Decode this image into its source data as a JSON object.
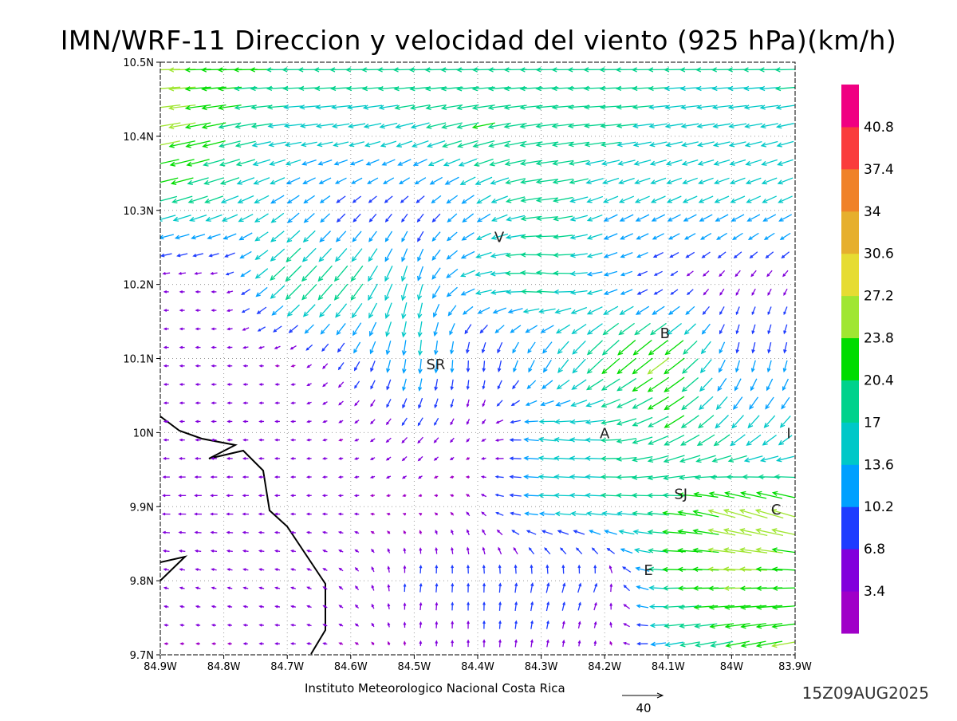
{
  "chart_data": {
    "type": "vector",
    "title": "IMN/WRF-11 Direccion y velocidad del viento (925 hPa)(km/h)",
    "xlabel": "",
    "ylabel": "",
    "xlim": [
      -84.9,
      -83.9
    ],
    "ylim": [
      9.7,
      10.5
    ],
    "grid": true,
    "x_ticks": [
      {
        "value": -84.9,
        "label": "84.9W"
      },
      {
        "value": -84.8,
        "label": "84.8W"
      },
      {
        "value": -84.7,
        "label": "84.7W"
      },
      {
        "value": -84.6,
        "label": "84.6W"
      },
      {
        "value": -84.5,
        "label": "84.5W"
      },
      {
        "value": -84.4,
        "label": "84.4W"
      },
      {
        "value": -84.3,
        "label": "84.3W"
      },
      {
        "value": -84.2,
        "label": "84.2W"
      },
      {
        "value": -84.1,
        "label": "84.1W"
      },
      {
        "value": -84.0,
        "label": "84W"
      },
      {
        "value": -83.9,
        "label": "83.9W"
      }
    ],
    "y_ticks": [
      {
        "value": 10.5,
        "label": "10.5N"
      },
      {
        "value": 10.4,
        "label": "10.4N"
      },
      {
        "value": 10.3,
        "label": "10.3N"
      },
      {
        "value": 10.2,
        "label": "10.2N"
      },
      {
        "value": 10.1,
        "label": "10.1N"
      },
      {
        "value": 10.0,
        "label": "10N"
      },
      {
        "value": 9.9,
        "label": "9.9N"
      },
      {
        "value": 9.8,
        "label": "9.8N"
      },
      {
        "value": 9.7,
        "label": "9.7N"
      }
    ],
    "wind_field": {
      "units": "km/h",
      "lons": [
        -84.9,
        -84.8,
        -84.7,
        -84.6,
        -84.5,
        -84.4,
        -84.3,
        -84.2,
        -84.1,
        -84.0,
        -83.9
      ],
      "lats": [
        10.5,
        10.4,
        10.3,
        10.2,
        10.1,
        10.0,
        9.9,
        9.8,
        9.7
      ],
      "u": [
        [
          -25,
          -22,
          -20,
          -20,
          -20,
          -20,
          -20,
          -20,
          -18,
          -18,
          -18
        ],
        [
          -26,
          -20,
          -15,
          -14,
          -15,
          -20,
          -20,
          -18,
          -15,
          -15,
          -15
        ],
        [
          -18,
          -15,
          -10,
          -6,
          -5,
          -10,
          -20,
          -12,
          -12,
          -12,
          -12
        ],
        [
          -4,
          -4,
          -15,
          -12,
          -3,
          -15,
          -20,
          -12,
          -5,
          -3,
          -3
        ],
        [
          -4,
          -4,
          -3,
          -5,
          -1,
          0,
          -5,
          -15,
          -20,
          -2,
          -2
        ],
        [
          -4,
          -4,
          -4,
          -3,
          -5,
          -2,
          -15,
          -17,
          -18,
          -12,
          -10
        ],
        [
          -7,
          -6,
          -4,
          -4,
          -2,
          -3,
          -15,
          -17,
          -20,
          -25,
          -25
        ],
        [
          -4,
          -4,
          -4,
          -3,
          1,
          0,
          2,
          3,
          -20,
          -25,
          -22
        ],
        [
          -3,
          -3,
          -4,
          -3,
          0,
          0,
          1,
          0,
          -15,
          -20,
          -25
        ]
      ],
      "v": [
        [
          0,
          0,
          0,
          0,
          0,
          0,
          0,
          0,
          0,
          0,
          0
        ],
        [
          -5,
          -5,
          -2,
          -3,
          -5,
          -5,
          -3,
          -2,
          -3,
          -3,
          -4
        ],
        [
          -5,
          -6,
          -8,
          -6,
          -6,
          -8,
          -2,
          -6,
          -6,
          -6,
          -6
        ],
        [
          0,
          0,
          -15,
          -15,
          -15,
          -3,
          3,
          -3,
          -3,
          -5,
          -5
        ],
        [
          0,
          0,
          0,
          -8,
          -14,
          -10,
          -12,
          -15,
          -15,
          -10,
          -10
        ],
        [
          0,
          0,
          0,
          -1,
          -6,
          -3,
          2,
          0,
          -10,
          -12,
          -10
        ],
        [
          0,
          0,
          0,
          0,
          0,
          3,
          0,
          1,
          2,
          8,
          8
        ],
        [
          1,
          1,
          1,
          3,
          8,
          8,
          9,
          8,
          0,
          0,
          0
        ],
        [
          0,
          0,
          0,
          1,
          3,
          6,
          6,
          3,
          -3,
          -5,
          -5
        ]
      ]
    },
    "colorbar": {
      "levels": [
        "3.4",
        "6.8",
        "10.2",
        "13.6",
        "17",
        "20.4",
        "23.8",
        "27.2",
        "30.6",
        "34",
        "37.4",
        "40.8"
      ],
      "colors": [
        "#a000c8",
        "#8200dc",
        "#1e3cff",
        "#00a0ff",
        "#00c8c8",
        "#00d28c",
        "#00dc00",
        "#a0e632",
        "#e6dc32",
        "#e6af2d",
        "#f08228",
        "#fa3c3c",
        "#f00082"
      ]
    },
    "places": [
      {
        "label": "V",
        "lon": -84.366,
        "lat": 10.265
      },
      {
        "label": "B",
        "lon": -84.105,
        "lat": 10.135
      },
      {
        "label": "SR",
        "lon": -84.466,
        "lat": 10.093
      },
      {
        "label": "A",
        "lon": -84.2,
        "lat": 10.0
      },
      {
        "label": "I",
        "lon": -83.91,
        "lat": 10.0
      },
      {
        "label": "SJ",
        "lon": -84.08,
        "lat": 9.918
      },
      {
        "label": "C",
        "lon": -83.93,
        "lat": 9.897
      },
      {
        "label": "E",
        "lon": -84.131,
        "lat": 9.815
      }
    ],
    "reference_vector": {
      "value": "40"
    },
    "footer": "Instituto Meteorologico Nacional Costa Rica",
    "timestamp": "15Z09AUG2025"
  }
}
